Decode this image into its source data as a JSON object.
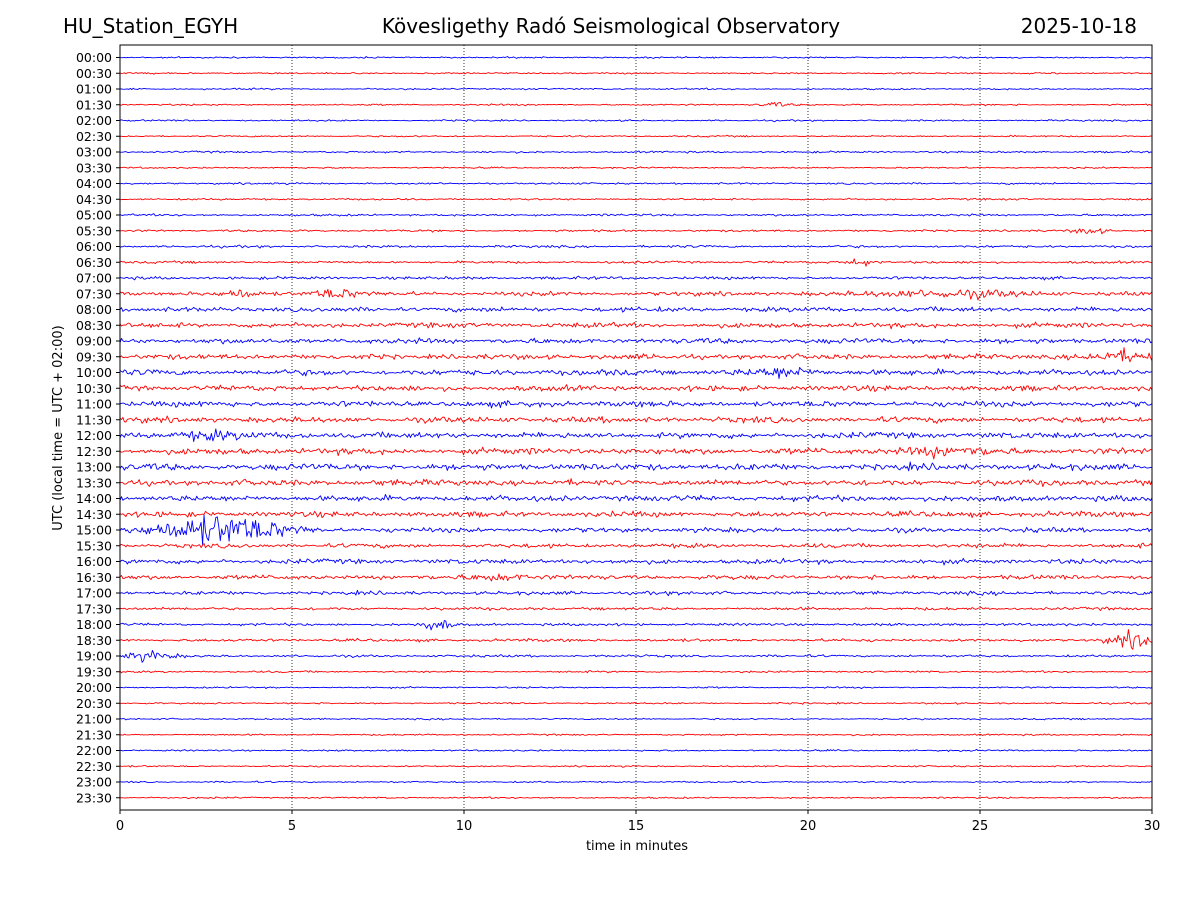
{
  "header": {
    "station": "HU_Station_EGYH",
    "observatory": "Kövesligethy Radó Seismological Observatory",
    "date": "2025-10-18"
  },
  "colors": {
    "even_row": "#0000ff",
    "odd_row": "#ff0000",
    "axis": "#000000",
    "grid": "#000000"
  },
  "chart_data": {
    "type": "line",
    "title": "Kövesligethy Radó Seismological Observatory",
    "xlabel": "time in minutes",
    "ylabel": "UTC (local time = UTC + 02:00)",
    "xlim": [
      0,
      30
    ],
    "xticks": [
      0,
      5,
      10,
      15,
      20,
      25,
      30
    ],
    "grid": "vertical dotted at x ticks",
    "rows": [
      "00:00",
      "00:30",
      "01:00",
      "01:30",
      "02:00",
      "02:30",
      "03:00",
      "03:30",
      "04:00",
      "04:30",
      "05:00",
      "05:30",
      "06:00",
      "06:30",
      "07:00",
      "07:30",
      "08:00",
      "08:30",
      "09:00",
      "09:30",
      "10:00",
      "10:30",
      "11:00",
      "11:30",
      "12:00",
      "12:30",
      "13:00",
      "13:30",
      "14:00",
      "14:30",
      "15:00",
      "15:30",
      "16:00",
      "16:30",
      "17:00",
      "17:30",
      "18:00",
      "18:30",
      "19:00",
      "19:30",
      "20:00",
      "20:30",
      "21:00",
      "21:30",
      "22:00",
      "22:30",
      "23:00",
      "23:30"
    ],
    "noise_level": [
      0.6,
      0.6,
      0.6,
      0.6,
      0.6,
      0.6,
      0.7,
      0.6,
      0.7,
      0.7,
      0.8,
      0.8,
      0.9,
      0.9,
      1.1,
      1.6,
      1.8,
      1.9,
      2.0,
      2.0,
      2.2,
      2.1,
      2.2,
      2.2,
      2.3,
      2.4,
      2.5,
      2.3,
      2.2,
      2.1,
      1.8,
      1.6,
      1.8,
      1.7,
      1.4,
      1.1,
      1.0,
      1.1,
      0.9,
      0.7,
      0.6,
      0.6,
      0.6,
      0.6,
      0.6,
      0.6,
      0.6,
      0.6
    ],
    "events": [
      {
        "row": "01:30",
        "minute": 19.0,
        "amplitude": 2.0,
        "duration": 0.6
      },
      {
        "row": "05:30",
        "minute": 28.2,
        "amplitude": 3.0,
        "duration": 0.6
      },
      {
        "row": "06:30",
        "minute": 21.5,
        "amplitude": 3.0,
        "duration": 0.6
      },
      {
        "row": "07:30",
        "minute": 3.5,
        "amplitude": 3.0,
        "duration": 0.6
      },
      {
        "row": "07:30",
        "minute": 6.2,
        "amplitude": 4.0,
        "duration": 1.0
      },
      {
        "row": "07:30",
        "minute": 24.0,
        "amplitude": 3.0,
        "duration": 3.0
      },
      {
        "row": "09:30",
        "minute": 29.2,
        "amplitude": 4.0,
        "duration": 1.5
      },
      {
        "row": "10:00",
        "minute": 19.3,
        "amplitude": 4.0,
        "duration": 1.2
      },
      {
        "row": "12:00",
        "minute": 2.5,
        "amplitude": 3.0,
        "duration": 1.5
      },
      {
        "row": "12:30",
        "minute": 24.0,
        "amplitude": 3.0,
        "duration": 2.0
      },
      {
        "row": "15:00",
        "minute": 2.9,
        "amplitude": 13.0,
        "duration": 2.5
      },
      {
        "row": "16:30",
        "minute": 11.0,
        "amplitude": 3.0,
        "duration": 1.2
      },
      {
        "row": "18:00",
        "minute": 9.2,
        "amplitude": 6.0,
        "duration": 0.5
      },
      {
        "row": "18:30",
        "minute": 29.5,
        "amplitude": 7.0,
        "duration": 1.0
      },
      {
        "row": "19:00",
        "minute": 0.8,
        "amplitude": 4.0,
        "duration": 1.0
      }
    ]
  }
}
